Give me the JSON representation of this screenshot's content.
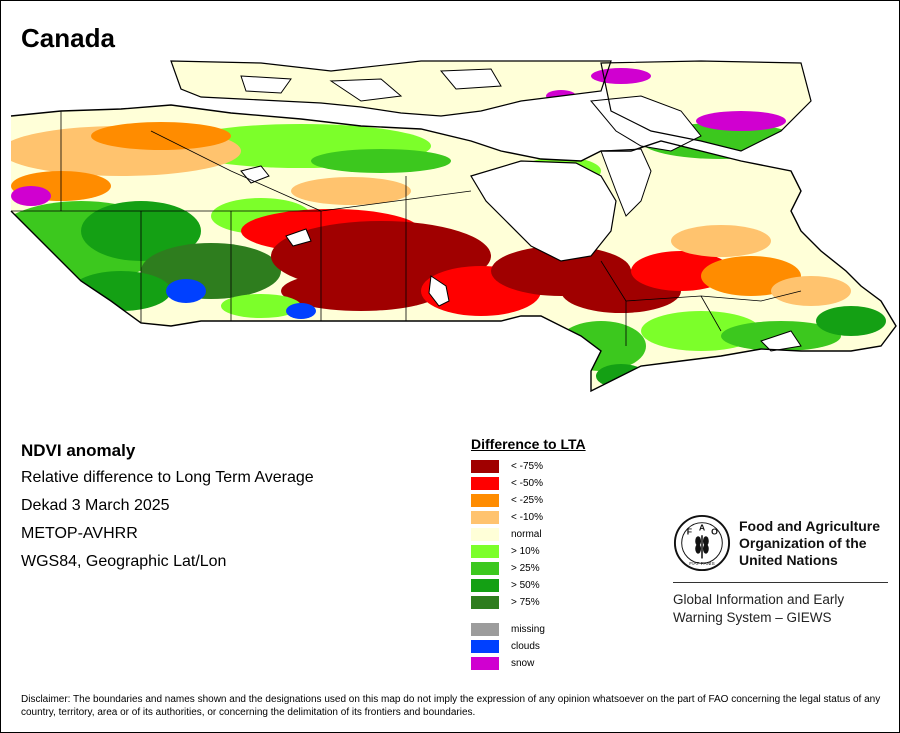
{
  "title": "Canada",
  "info": {
    "heading": "NDVI anomaly",
    "lines": [
      "Relative difference to Long Term Average",
      "Dekad 3 March 2025",
      "METOP-AVHRR",
      "WGS84, Geographic Lat/Lon"
    ]
  },
  "legend": {
    "title": "Difference to LTA",
    "classes": [
      {
        "label": "< -75%",
        "color": "#a00000"
      },
      {
        "label": "< -50%",
        "color": "#ff0000"
      },
      {
        "label": "< -25%",
        "color": "#ff8c00"
      },
      {
        "label": "< -10%",
        "color": "#ffc36e"
      },
      {
        "label": "normal",
        "color": "#ffffd8"
      },
      {
        "label": "> 10%",
        "color": "#7cff2a"
      },
      {
        "label": "> 25%",
        "color": "#3cc81e"
      },
      {
        "label": "> 50%",
        "color": "#14a014"
      },
      {
        "label": "> 75%",
        "color": "#2e7d1e"
      }
    ],
    "special": [
      {
        "label": "missing",
        "color": "#9c9c9c"
      },
      {
        "label": "clouds",
        "color": "#0040ff"
      },
      {
        "label": "snow",
        "color": "#d000d0"
      }
    ]
  },
  "org": {
    "name_lines": [
      "Food and Agriculture",
      "Organization of the",
      "United Nations"
    ],
    "logo_letters": [
      "F",
      "A",
      "O"
    ],
    "logo_motto": "FIAT PANIS",
    "system_lines": [
      "Global Information and Early",
      "Warning System – GIEWS"
    ]
  },
  "disclaimer": "Disclaimer: The boundaries and names shown and the designations used on this map do not imply the expression of any opinion whatsoever on the part of FAO concerning the legal status of any country, territory, area or of its authorities, or concerning the delimitation of its frontiers and boundaries.",
  "colors": {
    "water": "#ffffff",
    "boundary": "#000000"
  }
}
